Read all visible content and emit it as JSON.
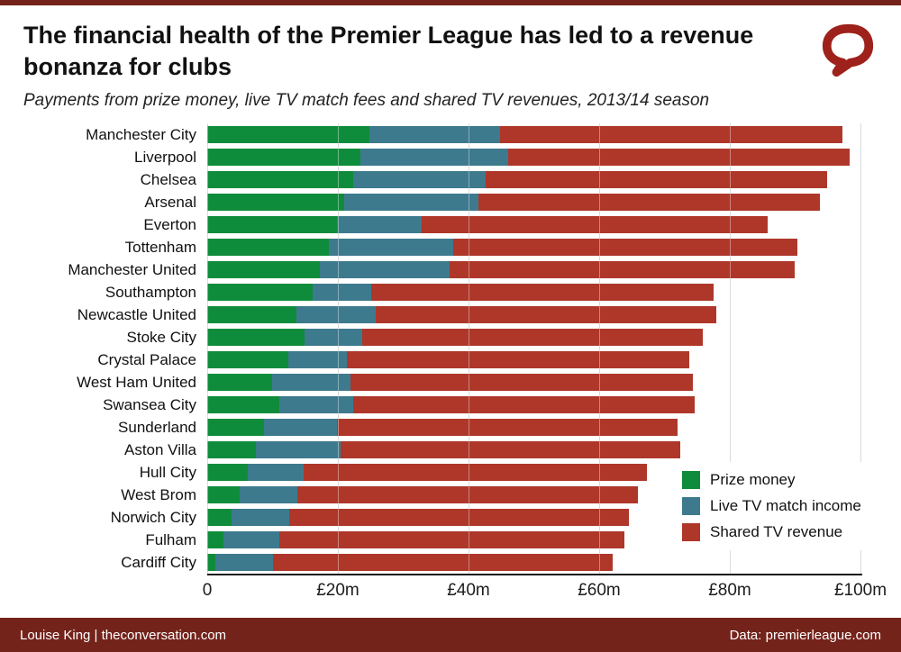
{
  "header": {
    "title": "The financial health of the Premier League has led to a revenue bonanza for clubs",
    "subtitle": "Payments from prize money, live TV match fees and shared TV revenues, 2013/14 season"
  },
  "footer": {
    "left": "Louise King | theconversation.com",
    "right": "Data: premierleague.com"
  },
  "brand": {
    "logo_name": "the-conversation-speech-bubble-icon",
    "logo_color": "#9e211b",
    "strip_color": "#74231b"
  },
  "chart_data": {
    "type": "bar",
    "orientation": "horizontal",
    "stacked": true,
    "unit": "£m",
    "xlim": [
      0,
      100
    ],
    "x_ticks": [
      "0",
      "£20m",
      "£40m",
      "£60m",
      "£80m",
      "£100m"
    ],
    "grid": true,
    "legend_position": "bottom-right",
    "categories": [
      "Manchester City",
      "Liverpool",
      "Chelsea",
      "Arsenal",
      "Everton",
      "Tottenham",
      "Manchester United",
      "Southampton",
      "Newcastle United",
      "Stoke City",
      "Crystal Palace",
      "West Ham United",
      "Swansea City",
      "Sunderland",
      "Aston Villa",
      "Hull City",
      "West Brom",
      "Norwich City",
      "Fulham",
      "Cardiff City"
    ],
    "series": [
      {
        "name": "Prize money",
        "color": "#0f8c3b",
        "values": [
          24.8,
          23.5,
          22.3,
          21.0,
          19.8,
          18.6,
          17.3,
          16.1,
          13.7,
          14.9,
          12.4,
          9.9,
          11.1,
          8.7,
          7.4,
          6.2,
          5.0,
          3.7,
          2.5,
          1.2
        ]
      },
      {
        "name": "Live TV match income",
        "color": "#3e7a8e",
        "values": [
          20.0,
          22.5,
          20.3,
          20.5,
          13.0,
          19.0,
          19.8,
          9.0,
          12.1,
          8.8,
          9.0,
          12.0,
          11.2,
          11.2,
          13.0,
          8.6,
          8.8,
          8.9,
          8.5,
          8.9
        ]
      },
      {
        "name": "Shared TV revenue",
        "color": "#ae372a",
        "values": [
          52.4,
          52.3,
          52.3,
          52.3,
          53.0,
          52.7,
          52.8,
          52.4,
          52.1,
          52.2,
          52.4,
          52.4,
          52.3,
          52.1,
          52.0,
          52.5,
          52.1,
          52.0,
          52.9,
          52.0
        ]
      }
    ],
    "totals_estimated": [
      97.2,
      98.3,
      94.9,
      93.8,
      85.8,
      90.3,
      89.9,
      77.5,
      77.9,
      75.9,
      73.8,
      74.3,
      74.6,
      72.0,
      72.4,
      67.3,
      65.9,
      64.6,
      63.9,
      62.1
    ]
  }
}
